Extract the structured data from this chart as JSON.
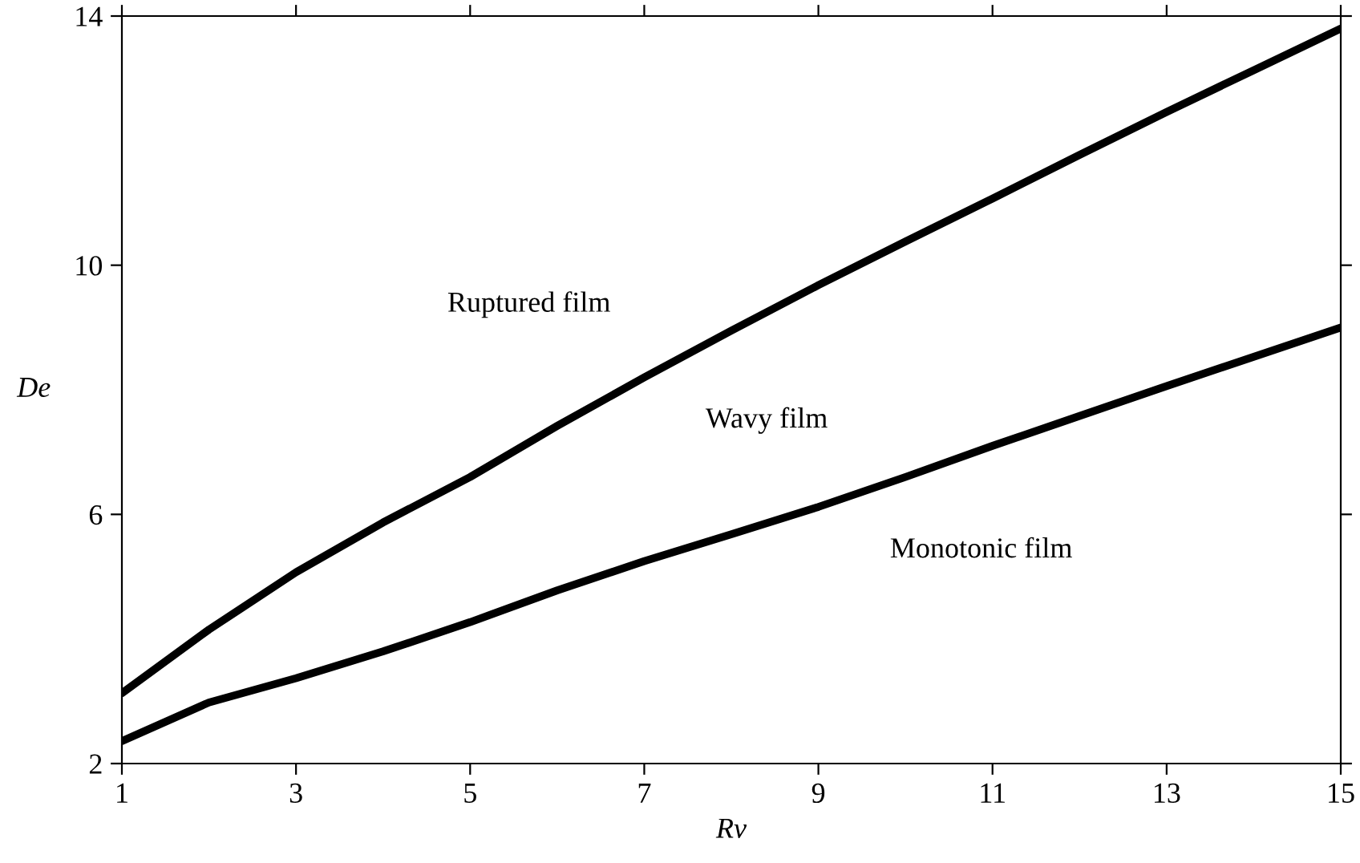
{
  "chart_data": {
    "type": "line",
    "xlabel": "Rv",
    "ylabel": "De",
    "series": [
      {
        "color": "#000000",
        "x": [
          1,
          2,
          3,
          4,
          5,
          6,
          7,
          8,
          9,
          10,
          11,
          12,
          13,
          14,
          15
        ],
        "values": [
          3.13,
          4.15,
          5.07,
          5.87,
          6.6,
          7.42,
          8.2,
          8.95,
          9.68,
          10.38,
          11.07,
          11.77,
          12.46,
          13.13,
          13.8
        ]
      },
      {
        "color": "#000000",
        "x": [
          1,
          2,
          3,
          4,
          5,
          6,
          7,
          8,
          9,
          10,
          11,
          12,
          13,
          14,
          15
        ],
        "values": [
          2.36,
          2.98,
          3.37,
          3.8,
          4.27,
          4.78,
          5.25,
          5.68,
          6.12,
          6.6,
          7.1,
          7.58,
          8.06,
          8.53,
          9.0
        ]
      }
    ],
    "xlim": [
      1,
      15
    ],
    "ylim": [
      2,
      14
    ],
    "xticks": [
      1,
      3,
      5,
      7,
      9,
      11,
      13,
      15
    ],
    "yticks": [
      2,
      6,
      10,
      14
    ],
    "annotations": [
      "Ruptured film",
      "Wavy film",
      "Monotonic film"
    ],
    "grid": false,
    "legend": false,
    "marker": "none",
    "line_style": "solid"
  }
}
